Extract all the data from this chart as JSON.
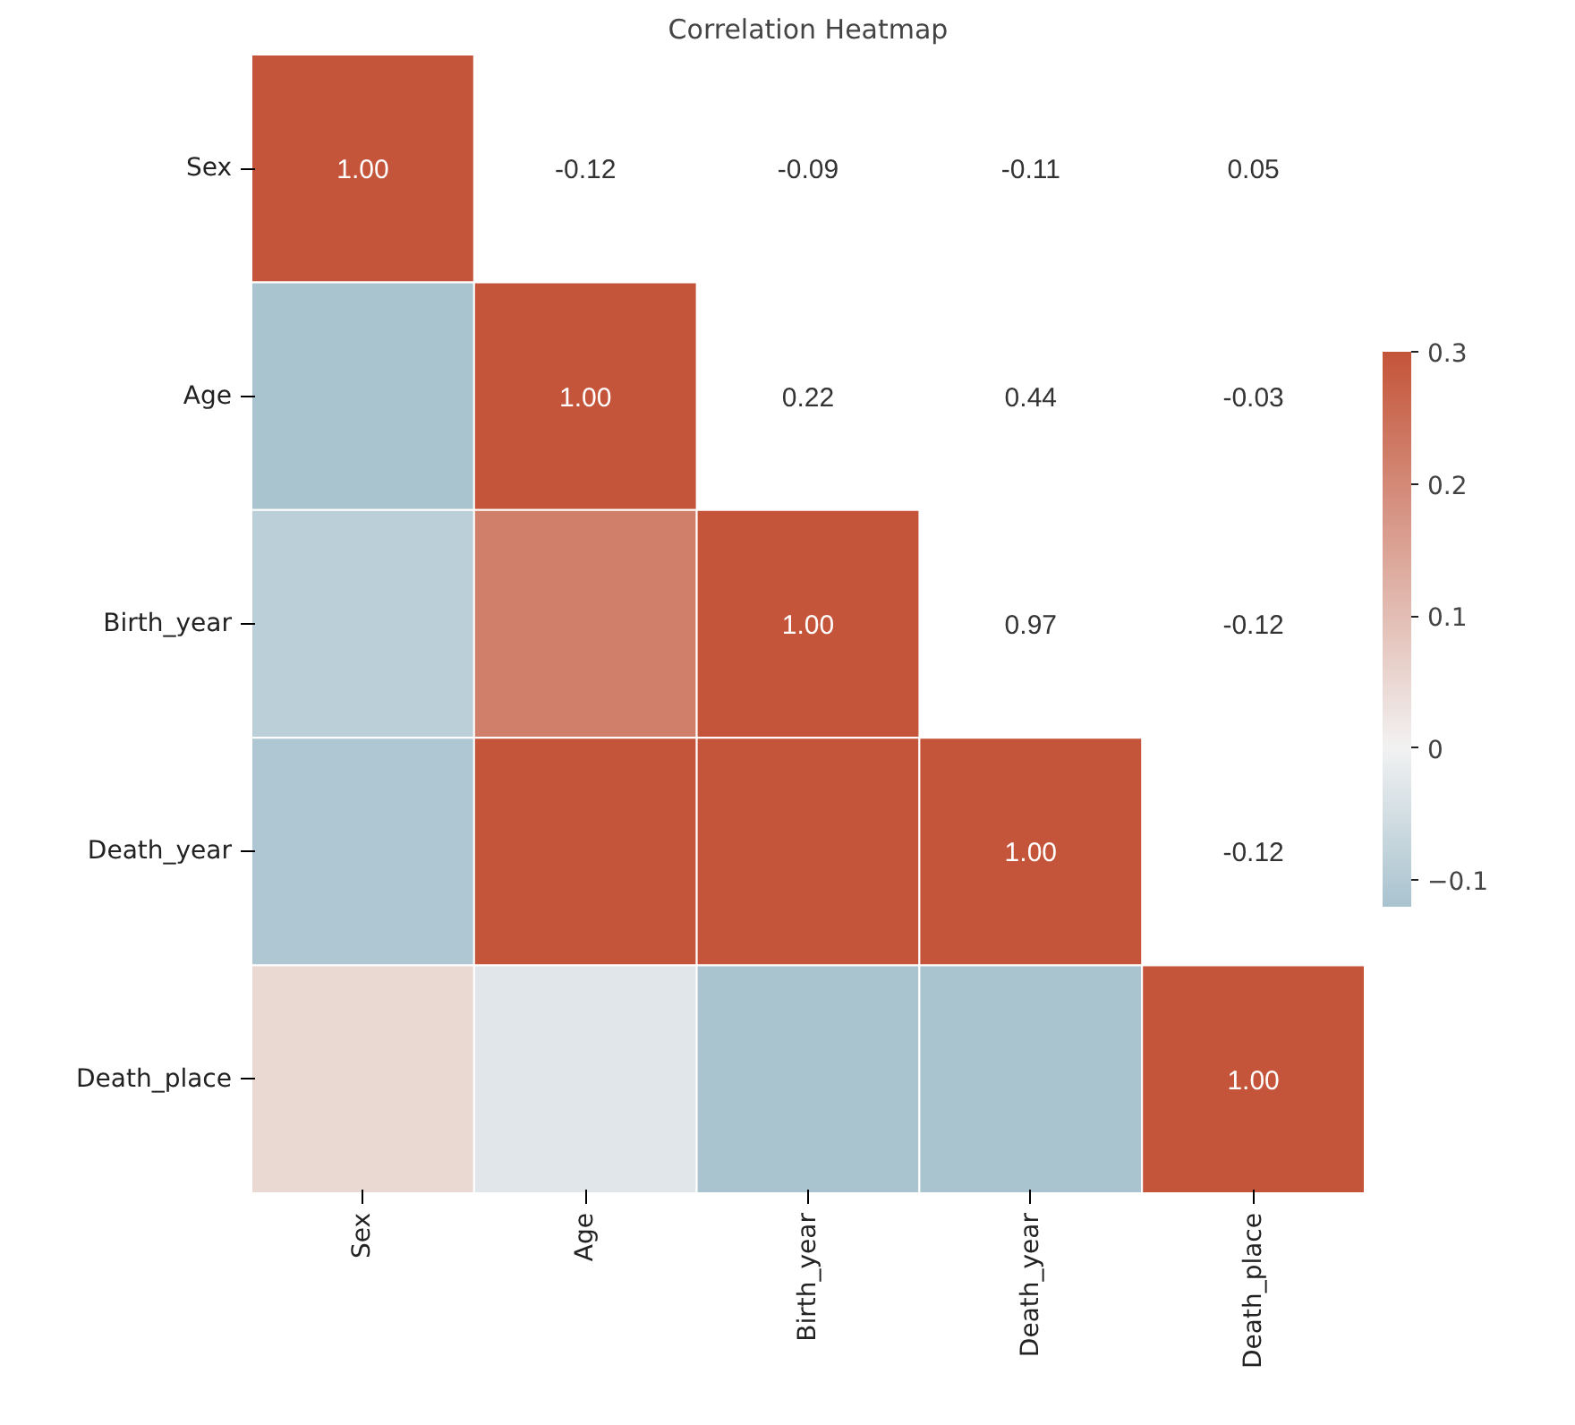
{
  "chart_data": {
    "type": "heatmap",
    "title": "Correlation Heatmap",
    "categories": [
      "Sex",
      "Age",
      "Birth_year",
      "Death_year",
      "Death_place"
    ],
    "y_categories": [
      "Sex",
      "Age",
      "Birth_year",
      "Death_year",
      "Death_place"
    ],
    "cells": [
      [
        1.0,
        null,
        null,
        null,
        null
      ],
      [
        -0.12,
        1.0,
        null,
        null,
        null
      ],
      [
        -0.09,
        0.22,
        1.0,
        null,
        null
      ],
      [
        -0.11,
        0.44,
        0.97,
        1.0,
        null
      ],
      [
        0.05,
        -0.03,
        -0.12,
        -0.12,
        1.0
      ]
    ],
    "cell_labels": [
      [
        "1.00",
        "-0.12",
        "-0.09",
        "-0.11",
        "0.05"
      ],
      [
        null,
        "1.00",
        "0.22",
        "0.44",
        "-0.03"
      ],
      [
        null,
        null,
        "1.00",
        "0.97",
        "-0.12"
      ],
      [
        null,
        null,
        null,
        "1.00",
        "-0.12"
      ],
      [
        null,
        null,
        null,
        null,
        "1.00"
      ]
    ],
    "clim": [
      -0.12,
      0.3
    ],
    "cticks": [
      -0.1,
      0.0,
      0.1,
      0.2,
      0.3
    ]
  }
}
